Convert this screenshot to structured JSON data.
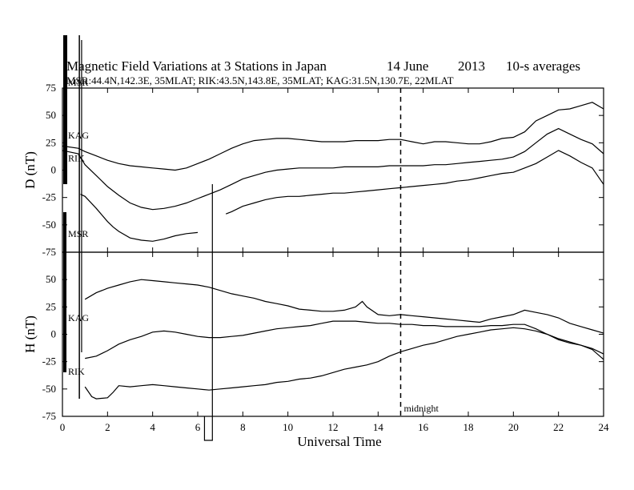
{
  "chart_data": {
    "type": "line",
    "title": "Magnetic Field Variations at 3 Stations in Japan",
    "date": "14 June",
    "year": "2013",
    "averaging": "10-s averages",
    "subtitle": "MSR:44.4N,142.3E, 35MLAT;  RIK:43.5N,143.8E, 35MLAT;  KAG:31.5N,130.7E, 22MLAT",
    "xlabel": "Universal Time",
    "xlim": [
      0,
      24
    ],
    "x_ticks": [
      0,
      2,
      4,
      6,
      8,
      10,
      12,
      14,
      16,
      18,
      20,
      22,
      24
    ],
    "midnight_line": {
      "x": 15,
      "label": "midnight"
    },
    "panels": [
      {
        "ylabel": "D (nT)",
        "ylim": [
          -75,
          75
        ],
        "y_ticks": [
          75,
          50,
          25,
          0,
          -25,
          -50,
          -75
        ],
        "station_labels": [
          {
            "text": "MSR",
            "x": 0.25,
            "y": 80
          },
          {
            "text": "KAG",
            "x": 0.25,
            "y": 32
          },
          {
            "text": "RIK",
            "x": 0.25,
            "y": 11
          },
          {
            "text": "MSR",
            "x": 0.25,
            "y": -58
          }
        ],
        "series": [
          {
            "name": "KAG",
            "x": [
              0,
              0.7,
              1,
              1.5,
              2,
              2.5,
              3,
              3.5,
              4,
              4.5,
              5,
              5.5,
              6,
              6.5,
              7,
              7.5,
              8,
              8.5,
              9,
              9.5,
              10,
              10.5,
              11,
              11.5,
              12,
              12.5,
              13,
              13.5,
              14,
              14.5,
              15,
              15.5,
              16,
              16.5,
              17,
              17.5,
              18,
              18.5,
              19,
              19.5,
              20,
              20.5,
              21,
              21.5,
              22,
              22.5,
              23,
              23.5,
              24
            ],
            "y": [
              22,
              20,
              17,
              13,
              9,
              6,
              4,
              3,
              2,
              1,
              0,
              2,
              6,
              10,
              15,
              20,
              24,
              27,
              28,
              29,
              29,
              28,
              27,
              26,
              26,
              26,
              27,
              27,
              27,
              28,
              28,
              26,
              24,
              26,
              26,
              25,
              24,
              24,
              26,
              29,
              30,
              35,
              45,
              50,
              55,
              56,
              59,
              62,
              56
            ]
          },
          {
            "name": "RIK",
            "x": [
              0,
              0.7,
              1,
              1.5,
              2,
              2.5,
              3,
              3.5,
              4,
              4.5,
              5,
              5.5,
              6,
              6.5,
              7,
              7.5,
              8,
              8.5,
              9,
              9.5,
              10,
              10.5,
              11,
              11.5,
              12,
              12.5,
              13,
              13.5,
              14,
              14.5,
              15,
              15.5,
              16,
              16.5,
              17,
              17.5,
              18,
              18.5,
              19,
              19.5,
              20,
              20.5,
              21,
              21.5,
              22,
              22.5,
              23,
              23.5,
              24
            ],
            "y": [
              18,
              15,
              5,
              -5,
              -15,
              -23,
              -30,
              -34,
              -36,
              -35,
              -33,
              -30,
              -26,
              -22,
              -18,
              -13,
              -8,
              -5,
              -2,
              0,
              1,
              2,
              2,
              2,
              2,
              3,
              3,
              3,
              3,
              4,
              4,
              4,
              4,
              5,
              5,
              6,
              7,
              8,
              9,
              10,
              12,
              17,
              25,
              33,
              38,
              33,
              28,
              24,
              15
            ]
          },
          {
            "name": "MSR",
            "x": [
              0.8,
              1,
              1.5,
              2,
              2.25,
              2.5,
              3,
              3.5,
              4,
              4.5,
              5,
              5.5,
              6,
              6.5,
              7,
              7.25,
              7.5,
              8,
              8.5,
              9,
              9.5,
              10,
              10.5,
              11,
              11.5,
              12,
              12.5,
              13,
              13.5,
              14,
              14.5,
              15,
              15.5,
              16,
              16.5,
              17,
              17.5,
              18,
              18.5,
              19,
              19.5,
              20,
              20.5,
              21,
              21.5,
              22,
              22.5,
              23,
              23.5,
              24
            ],
            "y": [
              -22,
              -24,
              -35,
              -47,
              -52,
              -56,
              -62,
              -64,
              -65,
              -63,
              -60,
              -58,
              -57,
              null,
              null,
              -40,
              -38,
              -33,
              -30,
              -27,
              -25,
              -24,
              -24,
              -23,
              -22,
              -21,
              -21,
              -20,
              -19,
              -18,
              -17,
              -16,
              -15,
              -14,
              -13,
              -12,
              -10,
              -9,
              -7,
              -5,
              -3,
              -2,
              2,
              6,
              12,
              18,
              13,
              7,
              2,
              -13
            ]
          }
        ]
      },
      {
        "ylabel": "H (nT)",
        "ylim": [
          -75,
          75
        ],
        "y_ticks": [
          75,
          50,
          25,
          0,
          -25,
          -50,
          -75
        ],
        "station_labels": [
          {
            "text": "KAG",
            "x": 0.25,
            "y": 15
          },
          {
            "text": "RIK",
            "x": 0.25,
            "y": -34
          }
        ],
        "series": [
          {
            "name": "KAG",
            "x": [
              1,
              1.5,
              2,
              2.5,
              3,
              3.5,
              4,
              4.5,
              5,
              5.5,
              6,
              6.5,
              7,
              7.5,
              8,
              8.5,
              9,
              9.5,
              10,
              10.5,
              11,
              11.5,
              12,
              12.5,
              13,
              13.3,
              13.5,
              14,
              14.5,
              15,
              15.5,
              16,
              16.5,
              17,
              17.5,
              18,
              18.5,
              19,
              19.5,
              20,
              20.5,
              21,
              21.5,
              22,
              22.5,
              23,
              23.5,
              24
            ],
            "y": [
              32,
              38,
              42,
              45,
              48,
              50,
              49,
              48,
              47,
              46,
              45,
              43,
              40,
              37,
              35,
              33,
              30,
              28,
              26,
              23,
              22,
              21,
              21,
              22,
              25,
              30,
              25,
              18,
              17,
              18,
              17,
              16,
              15,
              14,
              13,
              12,
              11,
              14,
              16,
              18,
              22,
              20,
              18,
              15,
              10,
              7,
              4,
              1
            ]
          },
          {
            "name": "MSR",
            "x": [
              1,
              1.5,
              2,
              2.5,
              3,
              3.5,
              4,
              4.5,
              5,
              5.5,
              6,
              6.5,
              7,
              7.5,
              8,
              8.5,
              9,
              9.5,
              10,
              10.5,
              11,
              11.5,
              12,
              12.5,
              13,
              13.5,
              14,
              14.5,
              15,
              15.5,
              16,
              16.5,
              17,
              17.5,
              18,
              18.5,
              19,
              19.5,
              20,
              20.5,
              21,
              21.5,
              22,
              22.5,
              23,
              23.5,
              24
            ],
            "y": [
              -22,
              -20,
              -15,
              -9,
              -5,
              -2,
              2,
              3,
              2,
              0,
              -2,
              -3,
              -3,
              -2,
              -1,
              1,
              3,
              5,
              6,
              7,
              8,
              10,
              12,
              12,
              12,
              11,
              10,
              10,
              9,
              9,
              8,
              8,
              7,
              7,
              7,
              7,
              8,
              8,
              9,
              9,
              5,
              0,
              -5,
              -8,
              -10,
              -13,
              -18
            ]
          },
          {
            "name": "RIK",
            "x": [
              1,
              1.3,
              1.5,
              2,
              2.25,
              2.5,
              3,
              3.5,
              4,
              4.5,
              5,
              5.5,
              6,
              6.5,
              7,
              7.5,
              8,
              8.5,
              9,
              9.5,
              10,
              10.5,
              11,
              11.5,
              12,
              12.5,
              13,
              13.5,
              14,
              14.5,
              15,
              15.5,
              16,
              16.5,
              17,
              17.5,
              18,
              18.5,
              19,
              19.5,
              20,
              20.5,
              21,
              21.5,
              22,
              22.5,
              23,
              23.5,
              24
            ],
            "y": [
              -48,
              -57,
              -59,
              -58,
              -53,
              -47,
              -48,
              -47,
              -46,
              -47,
              -48,
              -49,
              -50,
              -51,
              -50,
              -49,
              -48,
              -47,
              -46,
              -44,
              -43,
              -41,
              -40,
              -38,
              -35,
              -32,
              -30,
              -28,
              -25,
              -20,
              -16,
              -13,
              -10,
              -8,
              -5,
              -2,
              0,
              2,
              4,
              5,
              6,
              5,
              3,
              0,
              -4,
              -7,
              -10,
              -14,
              -23
            ]
          }
        ]
      }
    ]
  }
}
